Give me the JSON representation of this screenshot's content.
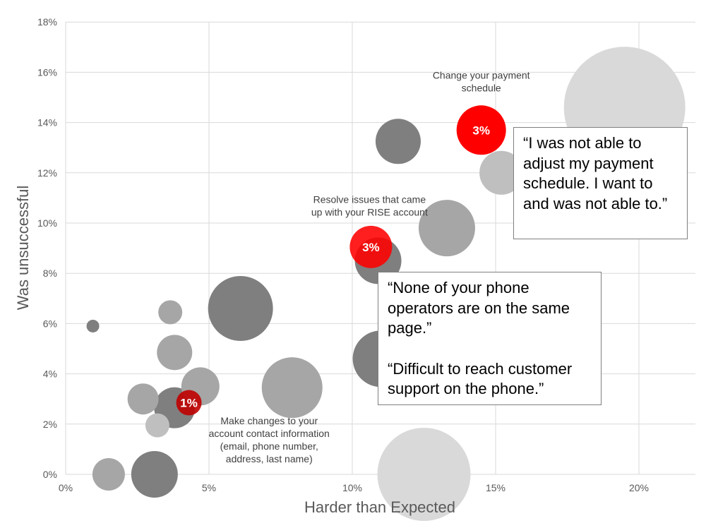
{
  "chart_data": {
    "type": "bubble",
    "xlabel": "Harder than Expected",
    "ylabel": "Was unsuccessful",
    "xlim": [
      0,
      22
    ],
    "ylim": [
      0,
      18
    ],
    "x_ticks": [
      0,
      5,
      10,
      15,
      20
    ],
    "y_ticks": [
      0,
      2,
      4,
      6,
      8,
      10,
      12,
      14,
      16,
      18
    ],
    "x_tick_labels": [
      "0%",
      "5%",
      "10%",
      "15%",
      "20%"
    ],
    "y_tick_labels": [
      "0%",
      "2%",
      "4%",
      "6%",
      "8%",
      "10%",
      "12%",
      "14%",
      "16%",
      "18%"
    ],
    "grid": true,
    "points": [
      {
        "x": 19.5,
        "y": 14.6,
        "size": 86,
        "color": "#d9d9d9"
      },
      {
        "x": 12.5,
        "y": 0.0,
        "size": 66,
        "color": "#d9d9d9"
      },
      {
        "x": 6.1,
        "y": 6.6,
        "size": 46,
        "color": "#7f7f7f"
      },
      {
        "x": 7.9,
        "y": 3.45,
        "size": 43,
        "color": "#a6a6a6"
      },
      {
        "x": 11.0,
        "y": 4.6,
        "size": 40,
        "color": "#7f7f7f"
      },
      {
        "x": 13.3,
        "y": 9.8,
        "size": 40,
        "color": "#a6a6a6"
      },
      {
        "x": 15.2,
        "y": 12.0,
        "size": 31,
        "color": "#bfbfbf"
      },
      {
        "x": 11.6,
        "y": 13.25,
        "size": 32,
        "color": "#7f7f7f"
      },
      {
        "x": 10.9,
        "y": 8.5,
        "size": 33,
        "color": "#7f7f7f"
      },
      {
        "x": 3.1,
        "y": 0.0,
        "size": 33,
        "color": "#7f7f7f"
      },
      {
        "x": 3.8,
        "y": 2.65,
        "size": 29,
        "color": "#7f7f7f"
      },
      {
        "x": 4.7,
        "y": 3.5,
        "size": 27,
        "color": "#a6a6a6"
      },
      {
        "x": 2.7,
        "y": 3.0,
        "size": 22,
        "color": "#a6a6a6"
      },
      {
        "x": 3.8,
        "y": 4.85,
        "size": 25,
        "color": "#a6a6a6"
      },
      {
        "x": 1.5,
        "y": 0.0,
        "size": 23,
        "color": "#a6a6a6"
      },
      {
        "x": 3.2,
        "y": 1.95,
        "size": 17,
        "color": "#bfbfbf"
      },
      {
        "x": 3.65,
        "y": 6.45,
        "size": 17,
        "color": "#a6a6a6"
      },
      {
        "x": 0.95,
        "y": 5.9,
        "size": 9,
        "color": "#7f7f7f"
      },
      {
        "x": 14.5,
        "y": 13.7,
        "size": 35,
        "color": "#ff0000",
        "label": "3%"
      },
      {
        "x": 10.65,
        "y": 9.05,
        "size": 30,
        "color": "#ff0000",
        "label": "3%",
        "opacity": 0.88
      },
      {
        "x": 4.3,
        "y": 2.85,
        "size": 18,
        "color": "#c00000",
        "label": "1%",
        "opacity": 0.9
      }
    ],
    "annotations": [
      {
        "lines": [
          "Change your payment",
          "schedule"
        ],
        "x": 14.5,
        "y": 15.75
      },
      {
        "lines": [
          "Resolve issues that came",
          "up with your RISE account"
        ],
        "x": 10.6,
        "y": 10.8
      },
      {
        "lines": [
          "Make changes to your",
          "account contact information",
          "(email, phone number,",
          "address, last name)"
        ],
        "x": 7.1,
        "y": 2.0
      }
    ]
  },
  "quotes": {
    "payment": "“I was not able to adjust my payment schedule. I want to and was not able to.”",
    "phone_1": "“None of your phone operators are on the same page.”",
    "phone_2": "“Difficult to reach customer support on the phone.”"
  }
}
